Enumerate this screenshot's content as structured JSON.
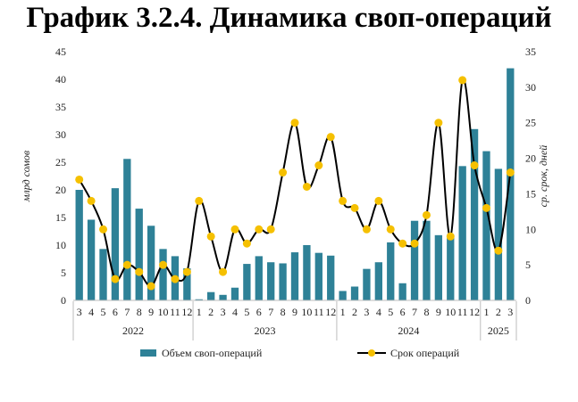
{
  "title": "График 3.2.4. Динамика своп-операций",
  "chart_data": {
    "type": "bar+line",
    "categories": [
      "3",
      "4",
      "5",
      "6",
      "7",
      "8",
      "9",
      "10",
      "11",
      "12",
      "1",
      "2",
      "3",
      "4",
      "5",
      "6",
      "7",
      "8",
      "9",
      "10",
      "11",
      "12",
      "1",
      "2",
      "3",
      "4",
      "5",
      "6",
      "7",
      "8",
      "9",
      "10",
      "11",
      "12",
      "1",
      "2",
      "3"
    ],
    "years": [
      {
        "label": "2022",
        "start": 0,
        "end": 9
      },
      {
        "label": "2023",
        "start": 10,
        "end": 21
      },
      {
        "label": "2024",
        "start": 22,
        "end": 33
      },
      {
        "label": "2025",
        "start": 34,
        "end": 36
      }
    ],
    "series": [
      {
        "name": "Объем своп-операций",
        "type": "bar",
        "axis": "left",
        "color": "#2e8197",
        "values": [
          20.0,
          14.6,
          9.3,
          20.3,
          25.6,
          16.6,
          13.5,
          9.3,
          8.0,
          5.8,
          0.2,
          1.5,
          1.0,
          2.3,
          6.6,
          8.0,
          6.9,
          6.7,
          8.7,
          10.0,
          8.6,
          8.1,
          1.7,
          2.5,
          5.7,
          6.9,
          10.5,
          3.1,
          14.4,
          14.4,
          11.8,
          11.9,
          24.3,
          31.0,
          27.0,
          23.8,
          42.0
        ]
      },
      {
        "name": "Срок операций",
        "type": "line",
        "axis": "right",
        "color": "#000000",
        "marker_color": "#f5c000",
        "values": [
          17,
          14,
          10,
          3,
          5,
          4,
          2,
          5,
          3,
          4,
          14,
          9,
          4,
          10,
          8,
          10,
          10,
          18,
          25,
          16,
          19,
          23,
          14,
          13,
          10,
          14,
          10,
          8,
          8,
          12,
          25,
          9,
          31,
          19,
          13,
          7,
          18
        ]
      }
    ],
    "ylabel_left": "млрд сомов",
    "ylabel_right": "ср. срок, дней",
    "ylim_left": [
      0,
      45
    ],
    "ylim_right": [
      0,
      35
    ],
    "yticks_left": [
      "0",
      "5",
      "10",
      "15",
      "20",
      "25",
      "30",
      "35",
      "40",
      "45"
    ],
    "yticks_right": [
      "0",
      "5",
      "10",
      "15",
      "20",
      "25",
      "30",
      "35"
    ],
    "grid": false,
    "legend_position": "bottom"
  }
}
